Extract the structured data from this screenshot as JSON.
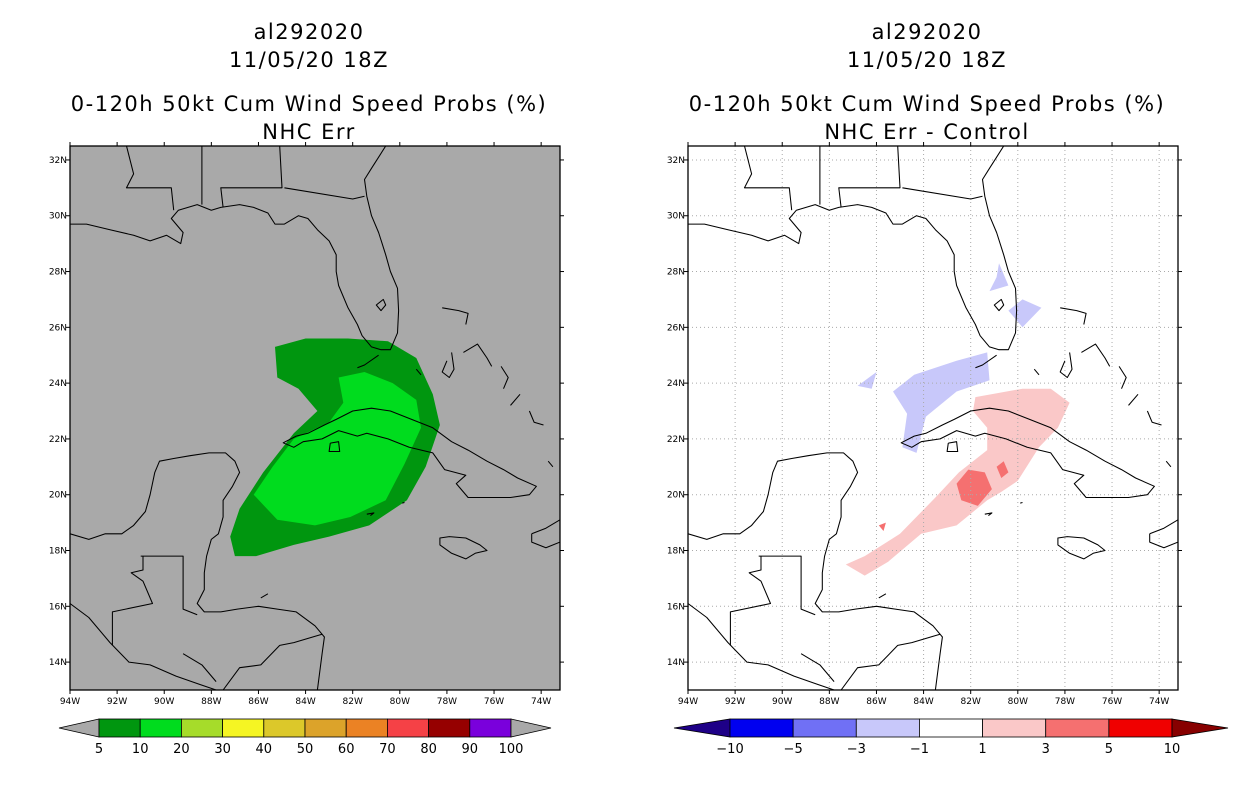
{
  "panels": [
    {
      "storm_id": "al292020",
      "datetime": "11/05/20 18Z",
      "product": "0-120h 50kt Cum Wind Speed Probs (%)",
      "subtitle": "NHC Err",
      "background": "#a9a9a9",
      "colorbar": {
        "colors": [
          "#a9a9a9",
          "#00960f",
          "#00dc1e",
          "#a6dc2a",
          "#f5f523",
          "#dcc82a",
          "#dca32a",
          "#eb8224",
          "#f54146",
          "#960000",
          "#7a00dc",
          "#a9a9a9"
        ],
        "labels": [
          "5",
          "10",
          "20",
          "30",
          "40",
          "50",
          "60",
          "70",
          "80",
          "90",
          "100"
        ]
      }
    },
    {
      "storm_id": "al292020",
      "datetime": "11/05/20 18Z",
      "product": "0-120h 50kt Cum Wind Speed Probs (%)",
      "subtitle": "NHC Err - Control",
      "background": "#ffffff",
      "colorbar": {
        "colors": [
          "#1e0087",
          "#0000f0",
          "#7070f5",
          "#c8c8fa",
          "#ffffff",
          "#fac8c8",
          "#f57070",
          "#f00000",
          "#870000"
        ],
        "labels": [
          "-10",
          "-5",
          "-3",
          "-1",
          "1",
          "3",
          "5",
          "10"
        ]
      }
    }
  ],
  "axes": {
    "lat_labels": [
      "14N",
      "16N",
      "18N",
      "20N",
      "22N",
      "24N",
      "26N",
      "28N",
      "30N",
      "32N"
    ],
    "lon_labels": [
      "94W",
      "92W",
      "90W",
      "88W",
      "86W",
      "84W",
      "82W",
      "80W",
      "78W",
      "76W",
      "74W"
    ],
    "lat_values": [
      14,
      16,
      18,
      20,
      22,
      24,
      26,
      28,
      30,
      32
    ],
    "lon_values": [
      -94,
      -92,
      -90,
      -88,
      -86,
      -84,
      -82,
      -80,
      -78,
      -76,
      -74
    ],
    "extent": {
      "lon_min": -94,
      "lon_max": -73.2,
      "lat_min": 13,
      "lat_max": 32.5
    }
  },
  "regions": {
    "left": [
      {
        "level": "5-10%",
        "color": "#00960f",
        "coords": [
          [
            -87.2,
            18.5
          ],
          [
            -86.8,
            19.5
          ],
          [
            -85.8,
            20.8
          ],
          [
            -84.5,
            22.2
          ],
          [
            -83.5,
            23
          ],
          [
            -84.3,
            23.8
          ],
          [
            -85.2,
            24.2
          ],
          [
            -85.3,
            25.3
          ],
          [
            -84,
            25.6
          ],
          [
            -82.2,
            25.6
          ],
          [
            -80.5,
            25.5
          ],
          [
            -79.3,
            24.9
          ],
          [
            -78.6,
            23.6
          ],
          [
            -78.3,
            22.5
          ],
          [
            -78.9,
            21
          ],
          [
            -79.7,
            19.8
          ],
          [
            -81.3,
            18.9
          ],
          [
            -83,
            18.5
          ],
          [
            -84.5,
            18.2
          ],
          [
            -86.1,
            17.8
          ],
          [
            -87,
            17.8
          ]
        ]
      },
      {
        "level": "10-20%",
        "color": "#00dc1e",
        "coords": [
          [
            -86.2,
            20
          ],
          [
            -85.4,
            21
          ],
          [
            -84.5,
            22
          ],
          [
            -83,
            22.6
          ],
          [
            -82.4,
            23.3
          ],
          [
            -82.6,
            24.2
          ],
          [
            -81.5,
            24.4
          ],
          [
            -80.3,
            24
          ],
          [
            -79.3,
            23.4
          ],
          [
            -79.1,
            22.4
          ],
          [
            -79.8,
            21.1
          ],
          [
            -80.6,
            19.8
          ],
          [
            -82.1,
            19.2
          ],
          [
            -83.6,
            18.9
          ],
          [
            -85.2,
            19.1
          ]
        ]
      }
    ],
    "right": [
      {
        "level": "-3 to -1",
        "color": "#c8c8fa",
        "coords": [
          [
            -84.9,
            21.7
          ],
          [
            -84.7,
            22.9
          ],
          [
            -85.3,
            23.7
          ],
          [
            -84.4,
            24.3
          ],
          [
            -82.6,
            24.8
          ],
          [
            -81.3,
            25.1
          ],
          [
            -81.2,
            24.1
          ],
          [
            -82.6,
            23.7
          ],
          [
            -83.9,
            22.8
          ],
          [
            -84.3,
            21.5
          ]
        ]
      },
      {
        "level": "-3 to -1",
        "color": "#c8c8fa",
        "coords": [
          [
            -80.4,
            26.6
          ],
          [
            -79.8,
            27
          ],
          [
            -79,
            26.7
          ],
          [
            -79.8,
            26
          ]
        ]
      },
      {
        "level": "-3 to -1",
        "color": "#c8c8fa",
        "coords": [
          [
            -81.2,
            27.3
          ],
          [
            -80.9,
            27.8
          ],
          [
            -80.8,
            28.3
          ],
          [
            -80.4,
            27.5
          ]
        ]
      },
      {
        "level": "-3 to -1",
        "color": "#c8c8fa",
        "coords": [
          [
            -86.8,
            23.9
          ],
          [
            -86,
            24.4
          ],
          [
            -86.2,
            23.8
          ]
        ]
      },
      {
        "level": "1 to 3",
        "color": "#fac8c8",
        "coords": [
          [
            -87.3,
            17.5
          ],
          [
            -86.5,
            17.8
          ],
          [
            -85,
            18.6
          ],
          [
            -83.5,
            19.9
          ],
          [
            -82.5,
            20.8
          ],
          [
            -81.3,
            21.6
          ],
          [
            -81.3,
            22.4
          ],
          [
            -81.9,
            23
          ],
          [
            -81.8,
            23.5
          ],
          [
            -79.8,
            23.8
          ],
          [
            -78.6,
            23.8
          ],
          [
            -77.8,
            23.3
          ],
          [
            -78.3,
            22.4
          ],
          [
            -79.1,
            21.7
          ],
          [
            -80,
            20.5
          ],
          [
            -80.7,
            20.1
          ],
          [
            -81.3,
            19.8
          ],
          [
            -82.6,
            18.9
          ],
          [
            -84.1,
            18.6
          ],
          [
            -85.5,
            17.6
          ],
          [
            -86.5,
            17.1
          ]
        ]
      },
      {
        "level": "3 to 5",
        "color": "#f57070",
        "coords": [
          [
            -82.6,
            20.4
          ],
          [
            -82.1,
            20.9
          ],
          [
            -81.4,
            20.8
          ],
          [
            -81.1,
            20.2
          ],
          [
            -81.7,
            19.6
          ],
          [
            -82.4,
            19.8
          ]
        ]
      },
      {
        "level": "3 to 5",
        "color": "#f57070",
        "coords": [
          [
            -80.9,
            21
          ],
          [
            -80.6,
            21.2
          ],
          [
            -80.4,
            20.8
          ],
          [
            -80.7,
            20.6
          ]
        ]
      },
      {
        "level": "3 to 5",
        "color": "#f57070",
        "coords": [
          [
            -85.9,
            18.9
          ],
          [
            -85.6,
            19
          ],
          [
            -85.7,
            18.7
          ]
        ]
      }
    ]
  }
}
